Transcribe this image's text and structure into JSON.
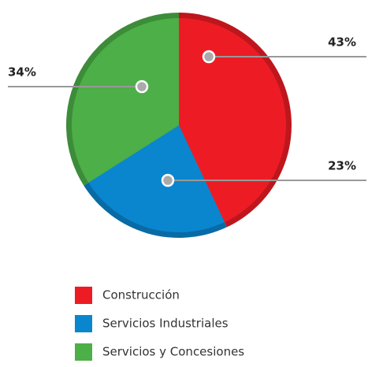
{
  "chart_data": {
    "type": "pie",
    "categories": [
      "Construcción",
      "Servicios Industriales",
      "Servicios y Concesiones"
    ],
    "values": [
      43,
      23,
      34
    ],
    "value_labels": [
      "43%",
      "23%",
      "34%"
    ],
    "colors": [
      "#ed1c24",
      "#0a86ce",
      "#4caf47"
    ],
    "legend": "bottom"
  }
}
